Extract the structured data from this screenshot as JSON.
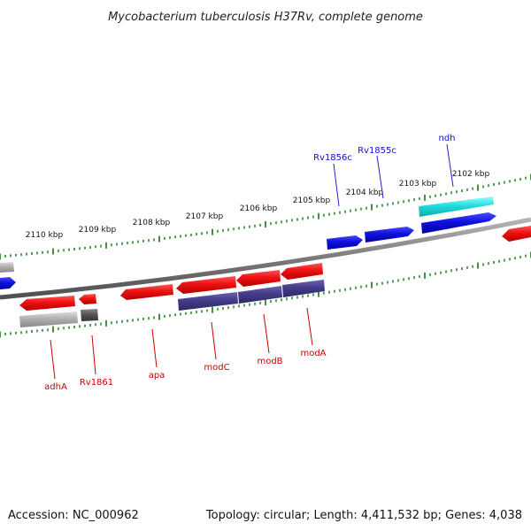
{
  "title": "Mycobacterium tuberculosis H37Rv, complete genome",
  "footer": {
    "accession": "Accession: NC_000962",
    "summary": "Topology: circular; Length: 4,411,532 bp; Genes: 4,038"
  },
  "tick_labels": [
    "2110 kbp",
    "2109 kbp",
    "2108 kbp",
    "2107 kbp",
    "2106 kbp",
    "2105 kbp",
    "2104 kbp",
    "2103 kbp",
    "2102 kbp"
  ],
  "top_gene_labels": [
    "Rv1856c",
    "Rv1855c",
    "ndh"
  ],
  "bottom_gene_labels": [
    "adhA",
    "Rv1861",
    "apa",
    "modC",
    "modB",
    "modA"
  ],
  "colors": {
    "forward_cds": "#ee1111",
    "forward_cds_pale": "#ff6666",
    "reverse_cds": "#1111dd",
    "highlight_cds": "#22dddd",
    "reverse_dark": "#443c88",
    "gray_feature": "#a8a8a8",
    "dark_gray_feature": "#555555",
    "tick_color": "#117711",
    "backbone": "#777777",
    "top_label": "#1010c0",
    "bottom_label": "#cc0000"
  }
}
